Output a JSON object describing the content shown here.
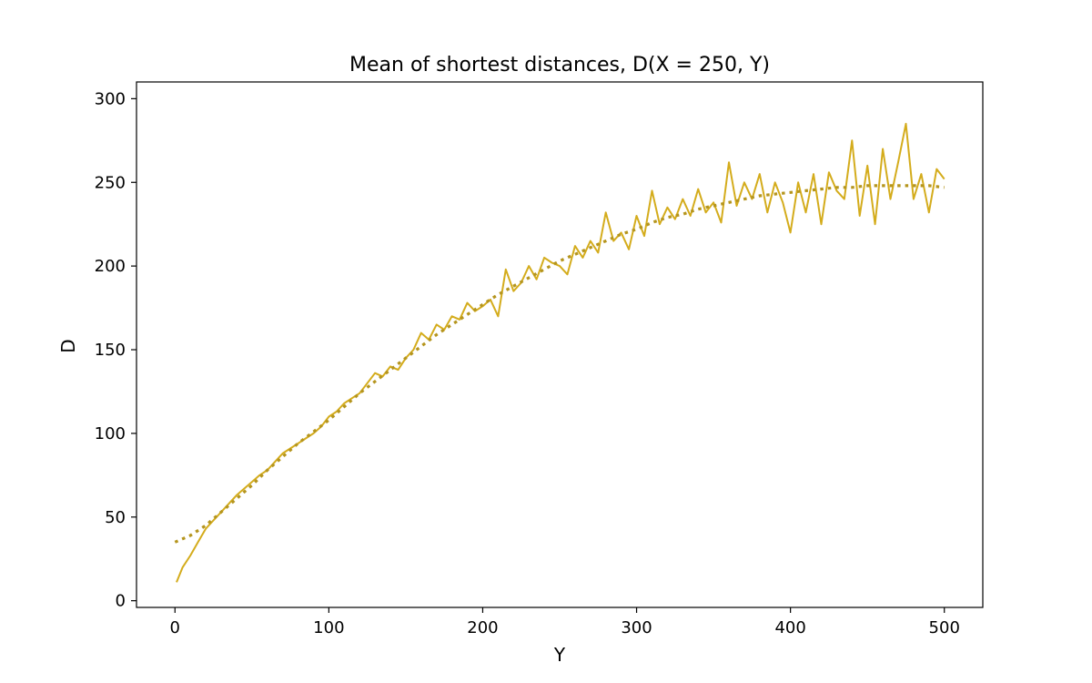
{
  "chart_data": {
    "type": "line",
    "title": "Mean of shortest distances, D(X = 250, Y)",
    "xlabel": "Y",
    "ylabel": "D",
    "xlim": [
      -25,
      525
    ],
    "ylim": [
      -4,
      310
    ],
    "xticks": [
      0,
      100,
      200,
      300,
      400,
      500
    ],
    "yticks": [
      0,
      50,
      100,
      150,
      200,
      250,
      300
    ],
    "grid": false,
    "legend": "none",
    "series": [
      {
        "style": "solid",
        "color": "#d4ac1c",
        "x": [
          1,
          5,
          10,
          15,
          20,
          25,
          30,
          35,
          40,
          45,
          50,
          55,
          60,
          65,
          70,
          75,
          80,
          85,
          90,
          95,
          100,
          105,
          110,
          115,
          120,
          125,
          130,
          135,
          140,
          145,
          150,
          155,
          160,
          165,
          170,
          175,
          180,
          185,
          190,
          195,
          200,
          205,
          210,
          215,
          220,
          225,
          230,
          235,
          240,
          245,
          250,
          255,
          260,
          265,
          270,
          275,
          280,
          285,
          290,
          295,
          300,
          305,
          310,
          315,
          320,
          325,
          330,
          335,
          340,
          345,
          350,
          355,
          360,
          365,
          370,
          375,
          380,
          385,
          390,
          395,
          400,
          405,
          410,
          415,
          420,
          425,
          430,
          435,
          440,
          445,
          450,
          455,
          460,
          465,
          470,
          475,
          480,
          485,
          490,
          495,
          500
        ],
        "y": [
          11,
          20,
          27,
          35,
          43,
          48,
          53,
          58,
          63,
          67,
          71,
          75,
          78,
          83,
          88,
          91,
          94,
          97,
          100,
          104,
          110,
          113,
          118,
          121,
          124,
          130,
          136,
          134,
          140,
          138,
          145,
          150,
          160,
          156,
          165,
          162,
          170,
          168,
          178,
          173,
          176,
          180,
          170,
          198,
          185,
          190,
          200,
          192,
          205,
          202,
          200,
          195,
          212,
          205,
          215,
          208,
          232,
          215,
          220,
          210,
          230,
          218,
          245,
          225,
          235,
          228,
          240,
          230,
          246,
          232,
          238,
          226,
          262,
          236,
          250,
          240,
          255,
          232,
          250,
          238,
          220,
          250,
          232,
          255,
          225,
          256,
          245,
          240,
          275,
          230,
          260,
          225,
          270,
          240,
          262,
          285,
          240,
          255,
          232,
          258,
          252
        ]
      },
      {
        "style": "dotted",
        "color": "#b5951e",
        "x": [
          0,
          10,
          20,
          30,
          40,
          50,
          60,
          70,
          80,
          90,
          100,
          110,
          120,
          130,
          140,
          150,
          160,
          170,
          180,
          190,
          200,
          210,
          220,
          230,
          240,
          250,
          260,
          270,
          280,
          290,
          300,
          310,
          320,
          330,
          340,
          350,
          360,
          370,
          380,
          390,
          400,
          410,
          420,
          430,
          440,
          450,
          460,
          470,
          480,
          490,
          500
        ],
        "y": [
          35,
          39,
          45,
          53,
          61,
          69,
          78,
          86,
          94,
          101,
          108,
          116,
          124,
          131,
          138,
          145,
          152,
          159,
          165,
          171,
          177,
          183,
          188,
          193,
          198,
          203,
          207,
          211,
          215,
          219,
          222,
          226,
          229,
          231,
          234,
          236,
          238,
          240,
          242,
          243,
          244,
          245,
          246,
          247,
          247,
          248,
          248,
          248,
          248,
          248,
          247
        ]
      }
    ]
  }
}
